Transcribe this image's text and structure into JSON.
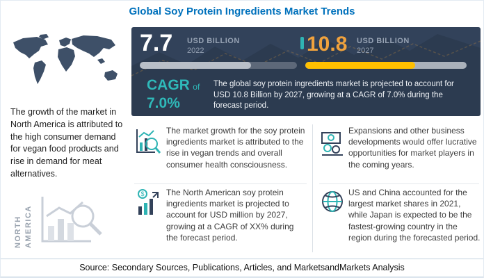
{
  "title": "Global Soy Protein Ingredients Market Trends",
  "chart_data": {
    "type": "bar",
    "categories": [
      "2022",
      "2027"
    ],
    "values": [
      7.7,
      10.8
    ],
    "title": "Global Soy Protein Ingredients Market Trends",
    "ylabel": "USD Billion",
    "cagr": "7.0%",
    "annotations": "Market projected to grow from USD 7.7 Billion in 2022 to USD 10.8 Billion by 2027 at a CAGR of 7.0%"
  },
  "left_panel": {
    "description": "The growth of the market in North America is attributed to the high consumer demand for vegan food products and rise in demand for meat alternatives.",
    "region_label": "NORTH AMERICA"
  },
  "stats_panel": {
    "current": {
      "value": "7.7",
      "unit": "USD BILLION",
      "year": "2022",
      "progress": 71
    },
    "projected": {
      "value": "10.8",
      "unit": "USD BILLION",
      "year": "2027",
      "progress": 68
    },
    "cagr": {
      "label": "CAGR",
      "of": "of",
      "value": "7.0%"
    },
    "summary": "The global soy protein ingredients market is projected to account for USD 10.8 Billion by 2027, growing at a CAGR of 7.0% during the forecast period."
  },
  "insights": [
    {
      "icon": "chart-magnifier-icon",
      "text": "The market growth for the soy protein ingredients market is attributed to the rise in vegan trends and overall consumer health consciousness."
    },
    {
      "icon": "banknote-icon",
      "text": "Expansions and other business developments would offer lucrative opportunities for market players in the coming years."
    },
    {
      "icon": "bar-chart-dollar-icon",
      "text": "The North American soy protein ingredients market is projected to account for USD  million by 2027, growing at a CAGR of XX% during the forecast period."
    },
    {
      "icon": "globe-icon",
      "text": "US and China accounted for the largest market shares in 2021, while Japan is expected to be the fastest-growing country in the region during the forecasted period."
    }
  ],
  "footer": {
    "source": "Source: Secondary Sources, Publications, Articles, and MarketsandMarkets Analysis"
  },
  "colors": {
    "title_blue": "#0071bc",
    "panel_navy": "#32425a",
    "accent_teal": "#2fb4b4",
    "value_orange": "#f0a23d",
    "bar_yellow": "#ffc000"
  }
}
